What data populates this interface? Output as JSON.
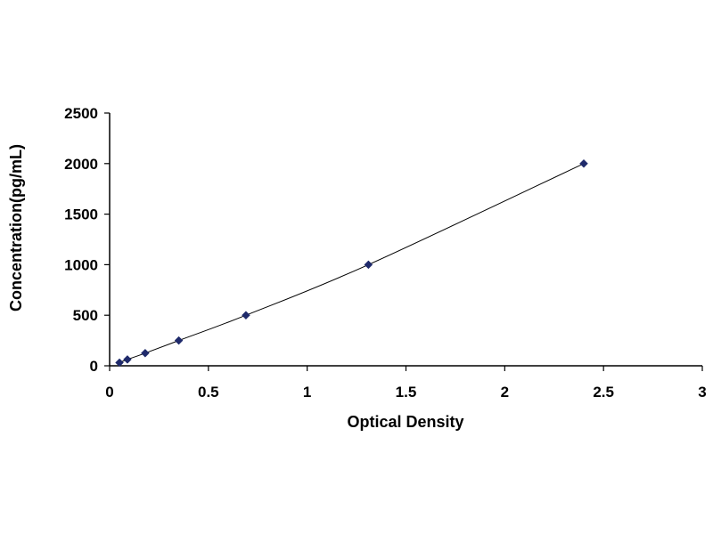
{
  "chart_data": {
    "type": "scatter",
    "title": "",
    "xlabel": "Optical Density",
    "ylabel": "Concentration(pg/mL)",
    "xlim": [
      0,
      3
    ],
    "ylim": [
      0,
      2500
    ],
    "xticks": [
      0,
      0.5,
      1,
      1.5,
      2,
      2.5,
      3
    ],
    "xtick_labels": [
      "0",
      "0.5",
      "1",
      "1.5",
      "2",
      "2.5",
      "3"
    ],
    "yticks": [
      0,
      500,
      1000,
      1500,
      2000,
      2500
    ],
    "ytick_labels": [
      "0",
      "500",
      "1000",
      "1500",
      "2000",
      "2500"
    ],
    "grid": false,
    "legend": "none",
    "trendline": true,
    "series": [
      {
        "marker": "diamond",
        "color": "#1f2a6b",
        "x": [
          0.05,
          0.09,
          0.18,
          0.35,
          0.69,
          1.31,
          2.4
        ],
        "y": [
          31.25,
          62.5,
          125,
          250,
          500,
          1000,
          2000
        ]
      }
    ]
  }
}
